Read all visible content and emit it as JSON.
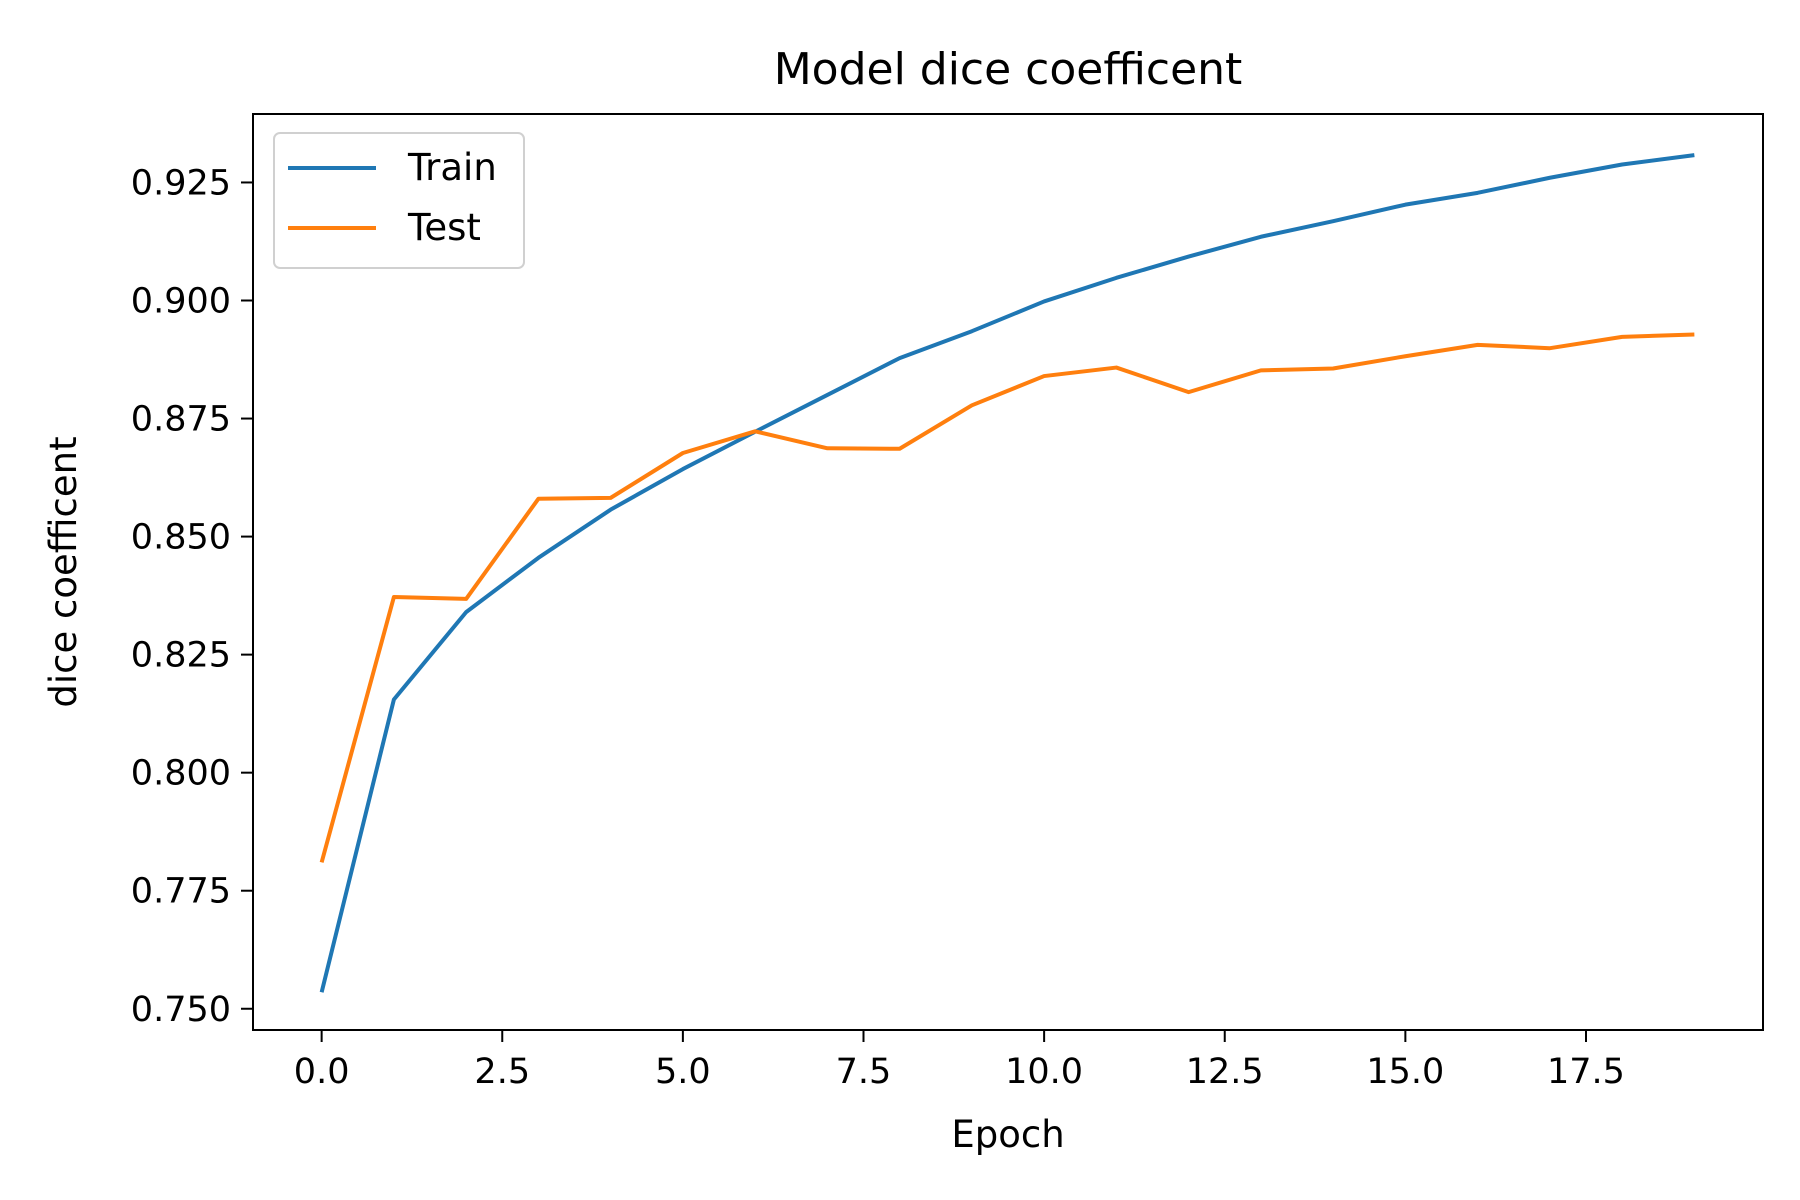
{
  "chart_data": {
    "type": "line",
    "title": "Model dice coefficent",
    "xlabel": "Epoch",
    "ylabel": "dice coefficent",
    "x": [
      0,
      1,
      2,
      3,
      4,
      5,
      6,
      7,
      8,
      9,
      10,
      11,
      12,
      13,
      14,
      15,
      16,
      17,
      18,
      19
    ],
    "xlim": [
      -0.95,
      19.95
    ],
    "ylim": [
      0.7455,
      0.9395
    ],
    "xticks": [
      0.0,
      2.5,
      5.0,
      7.5,
      10.0,
      12.5,
      15.0,
      17.5
    ],
    "xtick_labels": [
      "0.0",
      "2.5",
      "5.0",
      "7.5",
      "10.0",
      "12.5",
      "15.0",
      "17.5"
    ],
    "yticks": [
      0.75,
      0.775,
      0.8,
      0.825,
      0.85,
      0.875,
      0.9,
      0.925
    ],
    "ytick_labels": [
      "0.750",
      "0.775",
      "0.800",
      "0.825",
      "0.850",
      "0.875",
      "0.900",
      "0.925"
    ],
    "grid": false,
    "legend_position": "top-left",
    "series": [
      {
        "name": "Train",
        "color": "#1f77b4",
        "values": [
          0.7535,
          0.8155,
          0.834,
          0.8455,
          0.8557,
          0.8643,
          0.8722,
          0.88,
          0.8878,
          0.8935,
          0.8998,
          0.9048,
          0.9093,
          0.9135,
          0.9168,
          0.9203,
          0.9228,
          0.926,
          0.9288,
          0.9308
        ]
      },
      {
        "name": "Test",
        "color": "#ff7f0e",
        "values": [
          0.781,
          0.8372,
          0.8368,
          0.858,
          0.8582,
          0.8677,
          0.8723,
          0.8687,
          0.8686,
          0.8778,
          0.884,
          0.8858,
          0.8806,
          0.8852,
          0.8856,
          0.8882,
          0.8906,
          0.8899,
          0.8923,
          0.8928
        ]
      }
    ]
  }
}
